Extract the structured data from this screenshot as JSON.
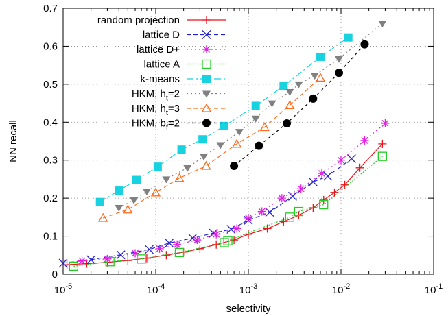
{
  "chart_data": {
    "type": "line",
    "title": "",
    "xlabel": "selectivity",
    "ylabel": "NN recall",
    "xscale": "log",
    "xlim": [
      1e-05,
      0.1
    ],
    "ylim": [
      0,
      0.7
    ],
    "grid": true,
    "legend_position": "top-left",
    "x_ticks": [
      {
        "value": 1e-05,
        "base": "10",
        "exp": "-5"
      },
      {
        "value": 0.0001,
        "base": "10",
        "exp": "-4"
      },
      {
        "value": 0.001,
        "base": "10",
        "exp": "-3"
      },
      {
        "value": 0.01,
        "base": "10",
        "exp": "-2"
      },
      {
        "value": 0.1,
        "base": "10",
        "exp": "-1"
      }
    ],
    "y_ticks": [
      {
        "value": 0,
        "label": "0"
      },
      {
        "value": 0.1,
        "label": "0.1"
      },
      {
        "value": 0.2,
        "label": "0.2"
      },
      {
        "value": 0.3,
        "label": "0.3"
      },
      {
        "value": 0.4,
        "label": "0.4"
      },
      {
        "value": 0.5,
        "label": "0.5"
      },
      {
        "value": 0.6,
        "label": "0.6"
      },
      {
        "value": 0.7,
        "label": "0.7"
      }
    ],
    "series": [
      {
        "name": "random projection",
        "name_main": "random projection",
        "name_sub": "",
        "name_tail": "",
        "color": "#e8141c",
        "dash": "solid",
        "marker": "plus",
        "x": [
          1.1e-05,
          1.8e-05,
          3e-05,
          5e-05,
          8e-05,
          0.00013,
          0.0002,
          0.0003,
          0.00045,
          0.0007,
          0.001,
          0.0016,
          0.0024,
          0.0035,
          0.005,
          0.0065,
          0.0085,
          0.011,
          0.016,
          0.028
        ],
        "y": [
          0.025,
          0.028,
          0.031,
          0.036,
          0.042,
          0.05,
          0.058,
          0.067,
          0.078,
          0.09,
          0.105,
          0.12,
          0.138,
          0.155,
          0.175,
          0.195,
          0.215,
          0.235,
          0.28,
          0.343
        ]
      },
      {
        "name": "lattice D",
        "name_main": "lattice D",
        "name_sub": "",
        "name_tail": "",
        "color": "#2222cc",
        "dash": "6,4",
        "marker": "x",
        "x": [
          1e-05,
          2e-05,
          4.2e-05,
          8.5e-05,
          0.00014,
          0.00025,
          0.00042,
          0.00065,
          0.001,
          0.0017,
          0.003,
          0.005,
          0.0072,
          0.013
        ],
        "y": [
          0.029,
          0.038,
          0.051,
          0.065,
          0.082,
          0.095,
          0.108,
          0.118,
          0.142,
          0.163,
          0.205,
          0.243,
          0.258,
          0.304
        ]
      },
      {
        "name": "lattice D+",
        "name_main": "lattice D+",
        "name_sub": "",
        "name_tail": "",
        "color": "#e020e0",
        "dash": "2,4",
        "marker": "star",
        "x": [
          1.6e-05,
          3e-05,
          6e-05,
          0.00011,
          0.00017,
          0.00028,
          0.00045,
          0.00075,
          0.001,
          0.0014,
          0.0023,
          0.0037,
          0.0062,
          0.01,
          0.018,
          0.03
        ],
        "y": [
          0.035,
          0.04,
          0.055,
          0.067,
          0.078,
          0.09,
          0.105,
          0.12,
          0.148,
          0.165,
          0.2,
          0.225,
          0.265,
          0.3,
          0.352,
          0.397
        ]
      },
      {
        "name": "lattice A",
        "name_main": "lattice A",
        "name_sub": "",
        "name_tail": "",
        "color": "#22cc22",
        "dash": "2,2",
        "marker": "square-open",
        "x": [
          1.3e-05,
          3.2e-05,
          7e-05,
          0.00018,
          0.00055,
          0.0006,
          0.0028,
          0.0035,
          0.0065,
          0.028
        ],
        "y": [
          0.021,
          0.033,
          0.04,
          0.057,
          0.083,
          0.088,
          0.15,
          0.165,
          0.183,
          0.31
        ]
      },
      {
        "name": "k-means",
        "name_main": "k-means",
        "name_sub": "",
        "name_tail": "",
        "color": "#19d2e0",
        "dash": "10,4,2,4",
        "marker": "square-filled",
        "x": [
          2.5e-05,
          4e-05,
          6.2e-05,
          0.000105,
          0.00019,
          0.00032,
          0.00055,
          0.0012,
          0.0024,
          0.006,
          0.012
        ],
        "y": [
          0.19,
          0.22,
          0.248,
          0.283,
          0.328,
          0.355,
          0.39,
          0.443,
          0.495,
          0.572,
          0.623
        ]
      },
      {
        "name": "HKM, ht=2",
        "name_main": "HKM, h",
        "name_sub": "t",
        "name_tail": "=2",
        "color": "#808080",
        "dash": "2,4",
        "marker": "triangle-down",
        "x": [
          4e-05,
          5.8e-05,
          8e-05,
          0.00013,
          0.00022,
          0.00033,
          0.0005,
          0.0008,
          0.0012,
          0.0018,
          0.0028,
          0.0035,
          0.0052,
          0.0095,
          0.028
        ],
        "y": [
          0.175,
          0.195,
          0.218,
          0.25,
          0.28,
          0.31,
          0.34,
          0.375,
          0.41,
          0.45,
          0.48,
          0.5,
          0.523,
          0.567,
          0.66
        ]
      },
      {
        "name": "HKM, ht=3",
        "name_main": "HKM, h",
        "name_sub": "t",
        "name_tail": "=3",
        "color": "#ff6a1c",
        "dash": "6,4",
        "marker": "triangle-open",
        "x": [
          2.7e-05,
          5e-05,
          0.0001,
          0.00018,
          0.00035,
          0.00075,
          0.0015,
          0.0028,
          0.006
        ],
        "y": [
          0.148,
          0.17,
          0.215,
          0.253,
          0.285,
          0.343,
          0.387,
          0.445,
          0.517
        ]
      },
      {
        "name": "HKM, bf=2",
        "name_main": "HKM, b",
        "name_sub": "f",
        "name_tail": "=2",
        "color": "#000000",
        "dash": "4,4",
        "marker": "circle-filled",
        "x": [
          0.0007,
          0.0013,
          0.0026,
          0.005,
          0.0095,
          0.018
        ],
        "y": [
          0.285,
          0.338,
          0.397,
          0.462,
          0.53,
          0.605
        ]
      }
    ]
  }
}
